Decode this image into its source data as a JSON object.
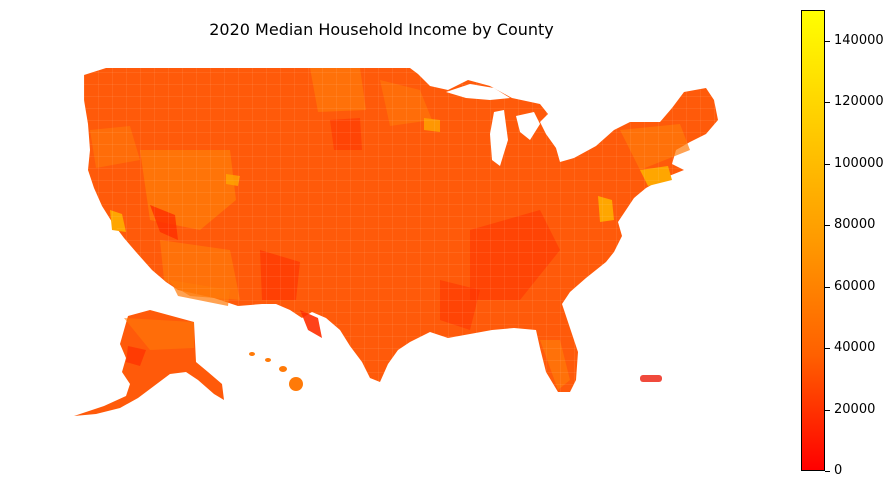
{
  "title": "2020 Median Household Income by County",
  "colorbar": {
    "min": 0,
    "max": 150000,
    "colors": [
      "#ff0000",
      "#ff6000",
      "#ff9a00",
      "#ffcc00",
      "#ffff00"
    ],
    "ticks": [
      "0",
      "20000",
      "40000",
      "60000",
      "80000",
      "100000",
      "120000",
      "140000"
    ]
  },
  "map_colors": {
    "base": "#ff5a0a",
    "mid": "#ff7a08",
    "high": "#ffa600",
    "low": "#ff2e00",
    "puerto_rico": "#f04a3c"
  }
}
